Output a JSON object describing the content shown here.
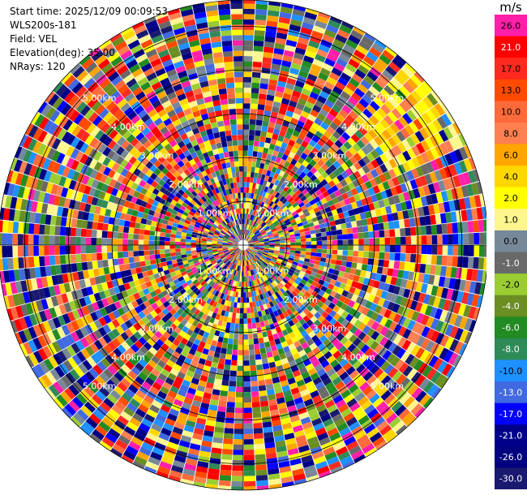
{
  "info": {
    "start_time": "Start time: 2025/12/09 00:09:53",
    "instrument": "WLS200s-181",
    "field": "Field: VEL",
    "elevation": "Elevation(deg): 35.00",
    "nrays": "NRays: 120"
  },
  "colorbar": {
    "unit": "m/s",
    "levels": [
      {
        "label": "26.0",
        "color": "#ff1fa8"
      },
      {
        "label": "21.0",
        "color": "#ff0000"
      },
      {
        "label": "17.0",
        "color": "#ff2a1f"
      },
      {
        "label": "13.0",
        "color": "#ff4a00"
      },
      {
        "label": "10.0",
        "color": "#ff6a3a"
      },
      {
        "label": "8.0",
        "color": "#ff7f50"
      },
      {
        "label": "6.0",
        "color": "#ffa500"
      },
      {
        "label": "4.0",
        "color": "#ffd700"
      },
      {
        "label": "2.0",
        "color": "#ffff00"
      },
      {
        "label": "1.0",
        "color": "#fff68f"
      },
      {
        "label": "0.0",
        "color": "#778899"
      },
      {
        "label": "-1.0",
        "color": "#696969"
      },
      {
        "label": "-2.0",
        "color": "#9acd32"
      },
      {
        "label": "-4.0",
        "color": "#6b8e23"
      },
      {
        "label": "-6.0",
        "color": "#228b22"
      },
      {
        "label": "-8.0",
        "color": "#2e8b57"
      },
      {
        "label": "-10.0",
        "color": "#1e90ff"
      },
      {
        "label": "-13.0",
        "color": "#4169e1"
      },
      {
        "label": "-17.0",
        "color": "#0000ff"
      },
      {
        "label": "-21.0",
        "color": "#00008b"
      },
      {
        "label": "-26.0",
        "color": "#000080"
      },
      {
        "label": "-30.0",
        "color": "#191970"
      }
    ]
  },
  "chart_data": {
    "type": "heatmap",
    "subtype": "ppi-polar",
    "field": "VEL",
    "units": "m/s",
    "n_rays": 120,
    "elevation_deg": 35.0,
    "range_rings_km": [
      1.0,
      2.0,
      3.0,
      4.0,
      5.0
    ],
    "range_ring_labels": [
      "1.00km",
      "2.00km",
      "3.00km",
      "4.00km",
      "5.00km"
    ],
    "max_range_km": 5.6,
    "value_range": [
      -30.0,
      26.0
    ]
  }
}
